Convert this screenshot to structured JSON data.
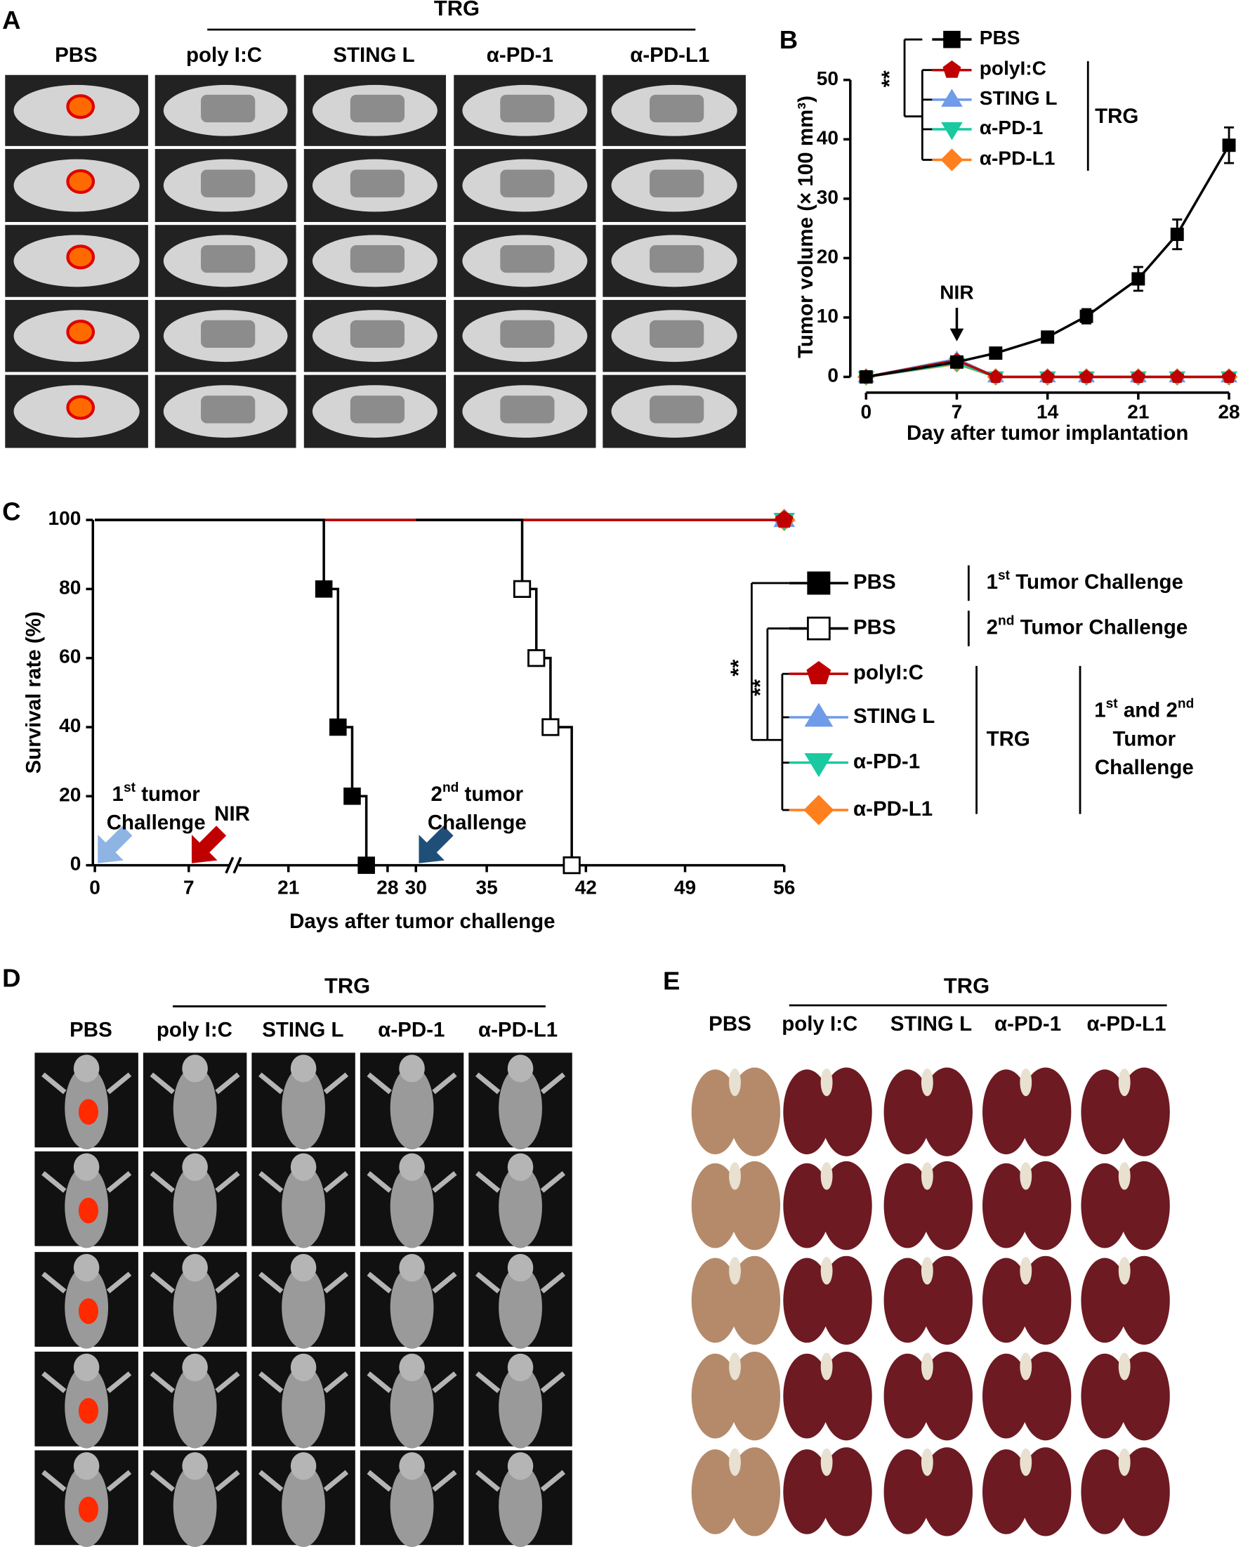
{
  "figure": {
    "A": {
      "label": "A",
      "group": "TRG",
      "columns": [
        "PBS",
        "poly I:C",
        "STING L",
        "α-PD-1",
        "α-PD-L1"
      ]
    },
    "D": {
      "label": "D",
      "group": "TRG",
      "columns": [
        "PBS",
        "poly I:C",
        "STING L",
        "α-PD-1",
        "α-PD-L1"
      ]
    },
    "E": {
      "label": "E",
      "group": "TRG",
      "columns": [
        "PBS",
        "poly I:C",
        "STING L",
        "α-PD-1",
        "α-PD-L1"
      ]
    }
  },
  "chart_data": [
    {
      "type": "line",
      "label": "B",
      "xlabel": "Day after tumor implantation",
      "ylabel": "Tumor volume (× 100 mm³)",
      "xlim": [
        0,
        28
      ],
      "ylim": [
        0,
        50
      ],
      "xticks": [
        0,
        7,
        14,
        21,
        28
      ],
      "yticks": [
        0,
        10,
        20,
        30,
        40,
        50
      ],
      "significance": "**",
      "group_label": "TRG",
      "annotation": {
        "text": "NIR",
        "x": 7
      },
      "series": [
        {
          "name": "PBS",
          "color": "#000000",
          "marker": "square",
          "x": [
            0,
            7,
            10,
            14,
            17,
            21,
            24,
            28
          ],
          "values": [
            0,
            2.5,
            4,
            6.7,
            10.2,
            16.5,
            24,
            39
          ],
          "errors": [
            0.5,
            0.5,
            0.6,
            0.5,
            1.2,
            2,
            2.5,
            3
          ]
        },
        {
          "name": "polyI:C",
          "color": "#c00000",
          "marker": "pentagon",
          "x": [
            0,
            7,
            10,
            14,
            17,
            21,
            24,
            28
          ],
          "values": [
            0,
            2.8,
            0,
            0,
            0,
            0,
            0,
            0
          ]
        },
        {
          "name": "STING L",
          "color": "#6f9be8",
          "marker": "triangle-up",
          "x": [
            0,
            7,
            10,
            14,
            17,
            21,
            24,
            28
          ],
          "values": [
            0,
            3,
            0,
            0,
            0,
            0,
            0,
            0
          ]
        },
        {
          "name": "α-PD-1",
          "color": "#19c9a0",
          "marker": "triangle-down",
          "x": [
            0,
            7,
            10,
            14,
            17,
            21,
            24,
            28
          ],
          "values": [
            0,
            2.3,
            0,
            0,
            0,
            0,
            0,
            0
          ]
        },
        {
          "name": "α-PD-L1",
          "color": "#ff7f1e",
          "marker": "diamond",
          "x": [
            0,
            7,
            10,
            14,
            17,
            21,
            24,
            28
          ],
          "values": [
            0,
            2.2,
            0,
            0,
            0,
            0,
            0,
            0
          ]
        }
      ]
    },
    {
      "type": "step",
      "label": "C",
      "xlabel": "Days after tumor challenge",
      "ylabel": "Survival rate (%)",
      "xlim": [
        0,
        56
      ],
      "ylim": [
        0,
        100
      ],
      "xbreak": [
        10,
        17.5
      ],
      "xticks": [
        0,
        7,
        21,
        28,
        30,
        35,
        42,
        49,
        56
      ],
      "yticks": [
        0,
        20,
        40,
        60,
        80,
        100
      ],
      "significance": [
        "**",
        "**"
      ],
      "group_label": "TRG",
      "shared_label": [
        "1st and 2nd",
        "Tumor",
        "Challenge"
      ],
      "annotations": [
        {
          "lines": [
            "1st tumor",
            "Challenge"
          ],
          "x": 0,
          "color": "#8db4e2"
        },
        {
          "lines": [
            "NIR"
          ],
          "x": 7,
          "color": "#c00000"
        },
        {
          "lines": [
            "2nd tumor",
            "Challenge"
          ],
          "x": 30,
          "color": "#1f4e79"
        }
      ],
      "series": [
        {
          "name": "PBS",
          "group": "1st Tumor Challenge",
          "color": "#000000",
          "marker": "square",
          "x": [
            0,
            23.5,
            24.5,
            25.5,
            26.5
          ],
          "values": [
            100,
            80,
            40,
            20,
            0
          ]
        },
        {
          "name": "PBS",
          "group": "2nd Tumor Challenge",
          "color": "#000000",
          "marker": "square-open",
          "x": [
            30,
            37.5,
            38.5,
            39.5,
            41
          ],
          "values": [
            100,
            80,
            60,
            40,
            0
          ]
        },
        {
          "name": "polyI:C",
          "color": "#c00000",
          "marker": "pentagon",
          "x": [
            0,
            56
          ],
          "values": [
            100,
            100
          ]
        },
        {
          "name": "STING L",
          "color": "#6f9be8",
          "marker": "triangle-up",
          "x": [
            0,
            56
          ],
          "values": [
            100,
            100
          ]
        },
        {
          "name": "α-PD-1",
          "color": "#19c9a0",
          "marker": "triangle-down",
          "x": [
            0,
            56
          ],
          "values": [
            100,
            100
          ]
        },
        {
          "name": "α-PD-L1",
          "color": "#ff7f1e",
          "marker": "diamond",
          "x": [
            0,
            56
          ],
          "values": [
            100,
            100
          ]
        }
      ]
    }
  ]
}
